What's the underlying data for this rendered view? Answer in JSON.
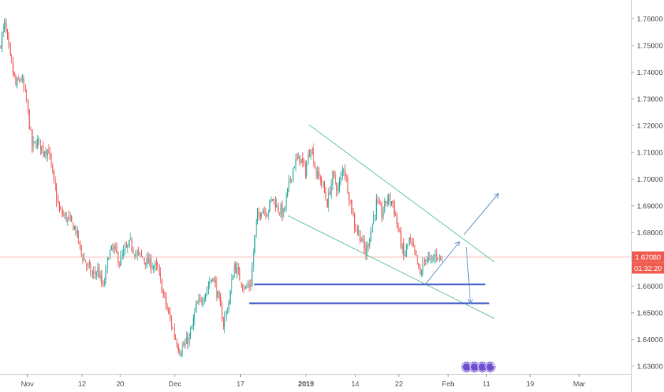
{
  "chart_data": {
    "type": "candlestick",
    "y_range": [
      1.627,
      1.767
    ],
    "y_ticks": [
      "1.76000",
      "1.75000",
      "1.74000",
      "1.73000",
      "1.72000",
      "1.71000",
      "1.70000",
      "1.69000",
      "1.68000",
      "1.67000",
      "1.66000",
      "1.65000",
      "1.64000",
      "1.63000"
    ],
    "x_labels": [
      {
        "text": "Nov",
        "bold": false,
        "bar": 5
      },
      {
        "text": "12",
        "bold": false,
        "bar": 15
      },
      {
        "text": "20",
        "bold": false,
        "bar": 22
      },
      {
        "text": "Dec",
        "bold": false,
        "bar": 32
      },
      {
        "text": "17",
        "bold": false,
        "bar": 44
      },
      {
        "text": "2019",
        "bold": true,
        "bar": 56
      },
      {
        "text": "14",
        "bold": false,
        "bar": 65
      },
      {
        "text": "22",
        "bold": false,
        "bar": 73
      },
      {
        "text": "Feb",
        "bold": false,
        "bar": 82
      },
      {
        "text": "11",
        "bold": false,
        "bar": 89
      },
      {
        "text": "19",
        "bold": false,
        "bar": 97
      },
      {
        "text": "Mar",
        "bold": false,
        "bar": 106
      }
    ],
    "x_bar_range": [
      0,
      115.5
    ],
    "current_price": {
      "label": "1.67080",
      "value": 1.6708
    },
    "countdown": "01:32:20",
    "close_path": [
      [
        0,
        1.749
      ],
      [
        1,
        1.758
      ],
      [
        2,
        1.745
      ],
      [
        3,
        1.735
      ],
      [
        4,
        1.738
      ],
      [
        5,
        1.729
      ],
      [
        6,
        1.712
      ],
      [
        7,
        1.714
      ],
      [
        8,
        1.711
      ],
      [
        9,
        1.711
      ],
      [
        10,
        1.698
      ],
      [
        11,
        1.688
      ],
      [
        12,
        1.686
      ],
      [
        13,
        1.684
      ],
      [
        14,
        1.681
      ],
      [
        15,
        1.672
      ],
      [
        16,
        1.668
      ],
      [
        17,
        1.664
      ],
      [
        18,
        1.666
      ],
      [
        19,
        1.659
      ],
      [
        20,
        1.672
      ],
      [
        21,
        1.674
      ],
      [
        22,
        1.669
      ],
      [
        23,
        1.673
      ],
      [
        24,
        1.676
      ],
      [
        25,
        1.672
      ],
      [
        26,
        1.671
      ],
      [
        27,
        1.669
      ],
      [
        28,
        1.668
      ],
      [
        29,
        1.666
      ],
      [
        30,
        1.657
      ],
      [
        31,
        1.649
      ],
      [
        32,
        1.642
      ],
      [
        33,
        1.636
      ],
      [
        34,
        1.638
      ],
      [
        35,
        1.642
      ],
      [
        36,
        1.652
      ],
      [
        37,
        1.655
      ],
      [
        38,
        1.659
      ],
      [
        39,
        1.664
      ],
      [
        40,
        1.656
      ],
      [
        41,
        1.646
      ],
      [
        42,
        1.654
      ],
      [
        43,
        1.668
      ],
      [
        44,
        1.663
      ],
      [
        45,
        1.659
      ],
      [
        46,
        1.661
      ],
      [
        47,
        1.684
      ],
      [
        48,
        1.689
      ],
      [
        49,
        1.688
      ],
      [
        50,
        1.693
      ],
      [
        51,
        1.689
      ],
      [
        52,
        1.687
      ],
      [
        53,
        1.698
      ],
      [
        54,
        1.706
      ],
      [
        55,
        1.708
      ],
      [
        56,
        1.703
      ],
      [
        57,
        1.713
      ],
      [
        58,
        1.702
      ],
      [
        59,
        1.699
      ],
      [
        60,
        1.691
      ],
      [
        61,
        1.701
      ],
      [
        62,
        1.696
      ],
      [
        63,
        1.705
      ],
      [
        64,
        1.694
      ],
      [
        65,
        1.683
      ],
      [
        66,
        1.679
      ],
      [
        67,
        1.672
      ],
      [
        68,
        1.681
      ],
      [
        69,
        1.691
      ],
      [
        70,
        1.687
      ],
      [
        71,
        1.693
      ],
      [
        72,
        1.691
      ],
      [
        73,
        1.681
      ],
      [
        74,
        1.671
      ],
      [
        75,
        1.677
      ],
      [
        76,
        1.672
      ],
      [
        77,
        1.664
      ],
      [
        78,
        1.671
      ],
      [
        79,
        1.669
      ],
      [
        80,
        1.672
      ],
      [
        81,
        1.67
      ]
    ],
    "overlays": {
      "channel_upper": [
        [
          56.5,
          1.7204
        ],
        [
          90.5,
          1.6689
        ]
      ],
      "channel_lower": [
        [
          52.7,
          1.6863
        ],
        [
          90.5,
          1.6478
        ]
      ],
      "support_1": {
        "from": 46.5,
        "to": 88.8,
        "value": 1.6606
      },
      "support_2": {
        "from": 45.6,
        "to": 89.5,
        "value": 1.6535
      },
      "arrow_up_1": [
        [
          77.7,
          1.6603
        ],
        [
          84.1,
          1.6766
        ]
      ],
      "arrow_up_2": [
        [
          84.9,
          1.6792
        ],
        [
          91.2,
          1.6946
        ]
      ],
      "arrow_down": [
        [
          85.3,
          1.6745
        ],
        [
          86.1,
          1.6534
        ]
      ]
    },
    "badges": [
      "3",
      "3",
      "2",
      "2"
    ],
    "colors": {
      "up": "#26a69a",
      "down": "#ef5350",
      "channel": "#5fbf99",
      "support": "#4a63c8",
      "arrow": "#5c8dc5",
      "price_line": "#f5a9a9",
      "price_tag": "#f05a4f",
      "badge": "#6e4fd1"
    }
  }
}
